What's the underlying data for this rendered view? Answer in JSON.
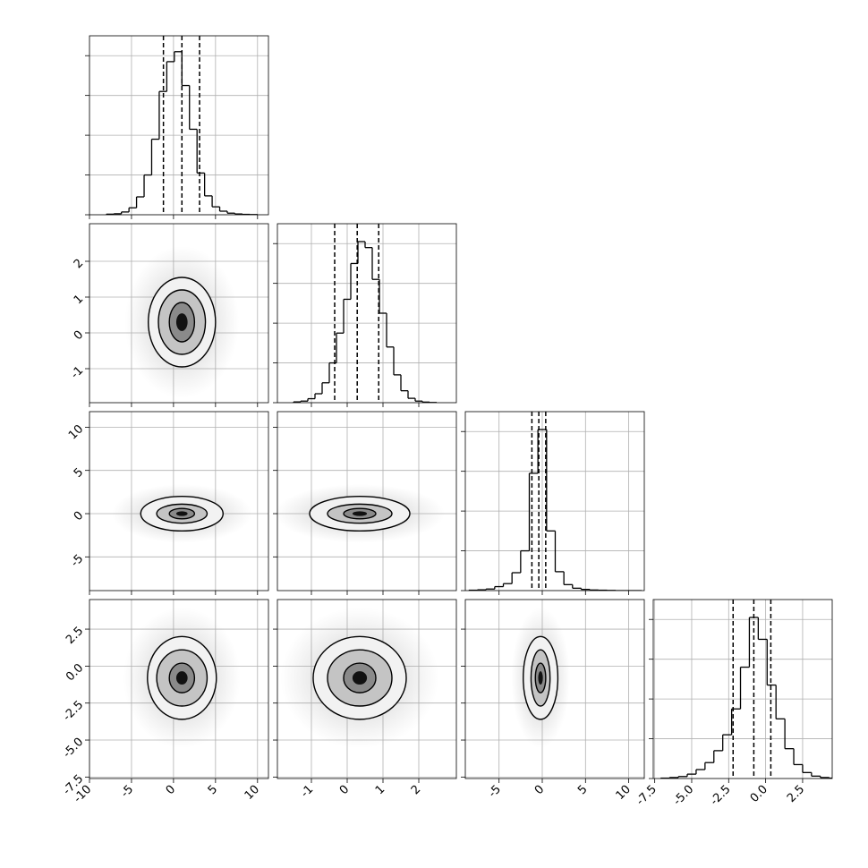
{
  "chart_data": {
    "type": "corner",
    "grid": true,
    "color": "#000000",
    "variables": [
      {
        "lim": [
          -10,
          11.3
        ],
        "ticks": [
          -10,
          -5,
          0,
          5,
          10
        ],
        "hist": {
          "bins": [
            -8,
            -7.1,
            -6.2,
            -5.3,
            -4.4,
            -3.5,
            -2.6,
            -1.7,
            -0.8,
            0.1,
            1.0,
            1.9,
            2.8,
            3.7,
            4.6,
            5.5,
            6.4,
            7.3,
            8.2,
            9.1,
            10.0
          ],
          "counts": [
            3,
            5,
            14,
            35,
            90,
            200,
            380,
            620,
            770,
            820,
            650,
            430,
            210,
            95,
            40,
            18,
            8,
            4,
            2,
            1
          ],
          "ylim": [
            0,
            900
          ],
          "yticks": [
            0,
            200,
            400,
            600,
            800
          ]
        },
        "quantiles": [
          -1.2,
          1.0,
          3.1
        ],
        "pairs": []
      },
      {
        "lim": [
          -1.95,
          3.05
        ],
        "ticks": [
          -1,
          0,
          1,
          2
        ],
        "hist": {
          "bins": [
            -1.5,
            -1.3,
            -1.1,
            -0.9,
            -0.7,
            -0.5,
            -0.3,
            -0.1,
            0.1,
            0.3,
            0.5,
            0.7,
            0.9,
            1.1,
            1.3,
            1.5,
            1.7,
            1.9,
            2.1,
            2.3,
            2.5
          ],
          "counts": [
            4,
            8,
            20,
            45,
            100,
            200,
            350,
            520,
            700,
            810,
            780,
            620,
            450,
            280,
            140,
            60,
            22,
            8,
            3,
            1
          ],
          "ylim": [
            0,
            900
          ],
          "yticks": [
            0,
            200,
            400,
            600,
            800
          ]
        },
        "quantiles": [
          -0.35,
          0.28,
          0.88
        ],
        "pairs": [
          {
            "contours": [
              {
                "cx": 1,
                "cy": 0.3,
                "rx": 4.0,
                "ry": 1.25
              },
              {
                "cx": 1,
                "cy": 0.3,
                "rx": 2.8,
                "ry": 0.9
              },
              {
                "cx": 1,
                "cy": 0.3,
                "rx": 1.5,
                "ry": 0.55
              }
            ]
          }
        ]
      },
      {
        "lim": [
          -8.9,
          11.8
        ],
        "ticks": [
          -5,
          0,
          5,
          10
        ],
        "hist": {
          "bins": [
            -8.5,
            -7.5,
            -6.5,
            -5.5,
            -4.5,
            -3.5,
            -2.5,
            -1.5,
            -0.5,
            0.5,
            1.5,
            2.5,
            3.5,
            4.5,
            5.5,
            6.5,
            7.5,
            8.5,
            9.5,
            10.5,
            11.5
          ],
          "counts": [
            2,
            4,
            8,
            20,
            35,
            90,
            200,
            590,
            810,
            300,
            95,
            30,
            12,
            6,
            3,
            2,
            1,
            0,
            0,
            0
          ],
          "ylim": [
            0,
            900
          ],
          "yticks": [
            0,
            200,
            400,
            600,
            800
          ]
        },
        "quantiles": [
          -1.2,
          -0.4,
          0.4
        ],
        "pairs": [
          {
            "contours": [
              {
                "cx": 1,
                "cy": 0,
                "rx": 4.9,
                "ry": 2.0
              },
              {
                "cx": 1,
                "cy": 0,
                "rx": 3.0,
                "ry": 1.1
              },
              {
                "cx": 1,
                "cy": 0,
                "rx": 1.5,
                "ry": 0.6
              }
            ]
          },
          {
            "contours": [
              {
                "cx": 0.35,
                "cy": 0,
                "rx": 1.4,
                "ry": 2.0
              },
              {
                "cx": 0.35,
                "cy": 0,
                "rx": 0.9,
                "ry": 1.1
              },
              {
                "cx": 0.35,
                "cy": 0,
                "rx": 0.45,
                "ry": 0.6
              }
            ]
          }
        ]
      },
      {
        "lim": [
          -7.6,
          4.5
        ],
        "ticks": [
          -7.5,
          {
            "value": -5,
            "label": "-5.0"
          },
          -2.5,
          {
            "value": 0,
            "label": "0.0"
          },
          2.5
        ],
        "hist": {
          "bins": [
            -7.1,
            -6.5,
            -5.9,
            -5.3,
            -4.7,
            -4.1,
            -3.5,
            -2.9,
            -2.3,
            -1.7,
            -1.1,
            -0.5,
            0.1,
            0.7,
            1.3,
            1.9,
            2.5,
            3.1,
            3.7,
            4.3,
            4.9
          ],
          "counts": [
            2,
            5,
            10,
            22,
            45,
            80,
            140,
            220,
            350,
            560,
            810,
            700,
            470,
            300,
            150,
            70,
            30,
            12,
            5,
            2
          ],
          "ylim": [
            0,
            900
          ],
          "yticks": [
            0,
            200,
            400,
            600,
            800
          ]
        },
        "quantiles": [
          -2.2,
          -0.8,
          0.35
        ],
        "pairs": [
          {
            "contours": [
              {
                "cx": 1,
                "cy": -0.8,
                "rx": 4.1,
                "ry": 2.8
              },
              {
                "cx": 1,
                "cy": -0.8,
                "rx": 3.0,
                "ry": 1.9
              },
              {
                "cx": 1,
                "cy": -0.8,
                "rx": 1.5,
                "ry": 1.0
              }
            ]
          },
          {
            "contours": [
              {
                "cx": 0.35,
                "cy": -0.8,
                "rx": 1.3,
                "ry": 2.8
              },
              {
                "cx": 0.35,
                "cy": -0.8,
                "rx": 0.9,
                "ry": 1.9
              },
              {
                "cx": 0.35,
                "cy": -0.8,
                "rx": 0.45,
                "ry": 1.0
              }
            ]
          },
          {
            "contours": [
              {
                "cx": -0.2,
                "cy": -0.8,
                "rx": 2.0,
                "ry": 2.8
              },
              {
                "cx": -0.2,
                "cy": -0.8,
                "rx": 1.1,
                "ry": 1.9
              },
              {
                "cx": -0.2,
                "cy": -0.8,
                "rx": 0.6,
                "ry": 1.0
              }
            ]
          }
        ]
      }
    ]
  }
}
